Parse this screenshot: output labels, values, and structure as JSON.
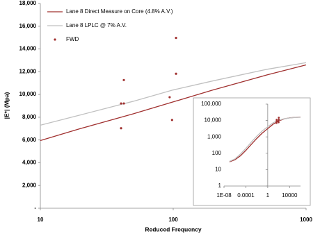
{
  "chart_data": [
    {
      "type": "line",
      "x_label": "Reduced Frequency",
      "y_label": "|E*| (Mpa)",
      "xscale": "log",
      "xlim": [
        10,
        1000
      ],
      "xticks": [
        10,
        100,
        1000
      ],
      "ylim": [
        0,
        18000
      ],
      "yticks": [
        {
          "value": 0,
          "label": "-"
        },
        {
          "value": 2000,
          "label": "2,000"
        },
        {
          "value": 4000,
          "label": "4,000"
        },
        {
          "value": 6000,
          "label": "6,000"
        },
        {
          "value": 8000,
          "label": "8,000"
        },
        {
          "value": 10000,
          "label": "10,000"
        },
        {
          "value": 12000,
          "label": "12,000"
        },
        {
          "value": 14000,
          "label": "14,000"
        },
        {
          "value": 16000,
          "label": "16,000"
        },
        {
          "value": 18000,
          "label": "18,000"
        }
      ],
      "grid": false,
      "legend": "top-left",
      "series": [
        {
          "name": "Lane 8 Direct Measure on Core (4.8% A.V.)",
          "color": "#a0302f",
          "style": "line",
          "x": [
            10,
            20,
            50,
            100,
            200,
            500,
            1000
          ],
          "values": [
            5950,
            7000,
            8300,
            9350,
            10400,
            11700,
            12600
          ]
        },
        {
          "name": "Lane 8 LPLC @ 7% A.V.",
          "color": "#c0c0c0",
          "style": "line",
          "x": [
            10,
            20,
            50,
            100,
            200,
            500,
            1000
          ],
          "values": [
            7300,
            8200,
            9400,
            10400,
            11200,
            12200,
            12800
          ]
        },
        {
          "name": "FWD",
          "color": "#a0302f",
          "style": "markers",
          "x": [
            40.5,
            42.5,
            42.5,
            40.5,
            94,
            98,
            105,
            105
          ],
          "values": [
            9210,
            9210,
            11270,
            7030,
            9760,
            7760,
            14970,
            11820
          ]
        }
      ]
    },
    {
      "type": "line",
      "xscale": "log",
      "yscale": "log",
      "xlim": [
        1e-08,
        1000000
      ],
      "xticks": [
        {
          "value": 1e-08,
          "label": "1E-08"
        },
        0.0001,
        1,
        10000
      ],
      "ylim": [
        1,
        100000
      ],
      "yticks": [
        1,
        10,
        100,
        {
          "value": 1000,
          "label": "1,000"
        },
        {
          "value": 10000,
          "label": "10,000"
        },
        {
          "value": 100000,
          "label": "100,000"
        }
      ],
      "series": [
        {
          "color": "#a0302f",
          "style": "line",
          "x": [
            1e-07,
            1e-06,
            1e-05,
            0.0001,
            0.001,
            0.01,
            0.1,
            1,
            10,
            100,
            1000,
            10000,
            100000,
            1000000
          ],
          "values": [
            30,
            40,
            70,
            150,
            350,
            800,
            1700,
            3200,
            6000,
            9350,
            12600,
            14500,
            15500,
            16000
          ]
        },
        {
          "color": "#c0c0c0",
          "style": "line",
          "x": [
            1e-07,
            1e-06,
            1e-05,
            0.0001,
            0.001,
            0.01,
            0.1,
            1,
            10,
            100,
            1000,
            10000,
            100000,
            1000000
          ],
          "values": [
            32,
            45,
            90,
            200,
            480,
            1100,
            2300,
            4200,
            7300,
            10400,
            12800,
            14300,
            15200,
            15700
          ]
        }
      ]
    }
  ]
}
